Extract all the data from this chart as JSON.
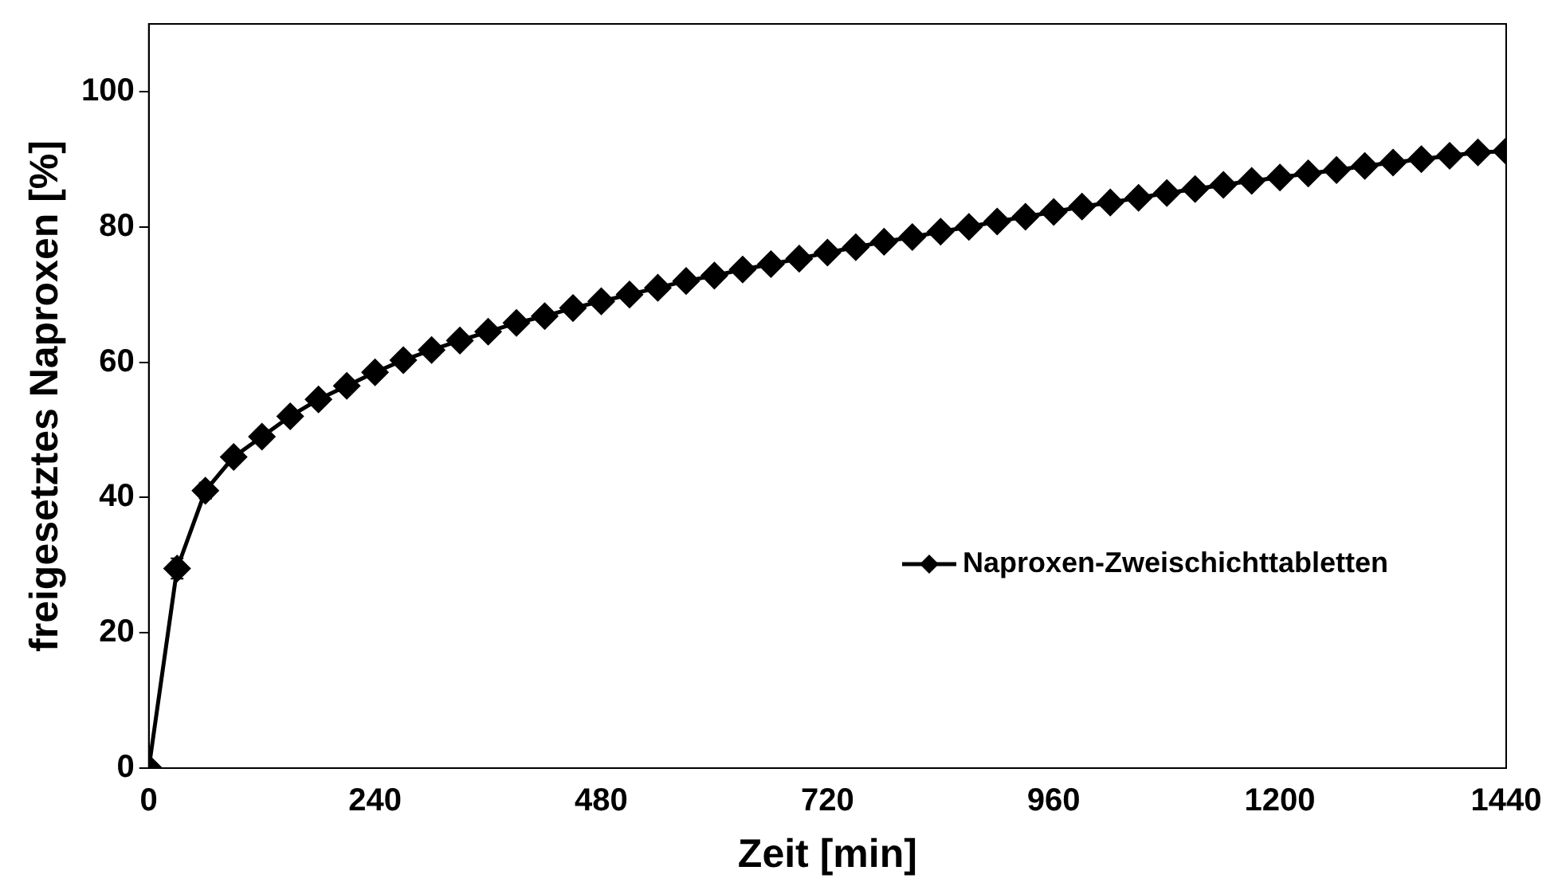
{
  "chart_data": {
    "type": "line",
    "xlabel": "Zeit [min]",
    "ylabel": "freigesetztes Naproxen [%]",
    "x": [
      0,
      30,
      60,
      90,
      120,
      150,
      180,
      210,
      240,
      270,
      300,
      330,
      360,
      390,
      420,
      450,
      480,
      510,
      540,
      570,
      600,
      630,
      660,
      690,
      720,
      750,
      780,
      810,
      840,
      870,
      900,
      930,
      960,
      990,
      1020,
      1050,
      1080,
      1110,
      1140,
      1170,
      1200,
      1230,
      1260,
      1290,
      1320,
      1350,
      1380,
      1410,
      1440
    ],
    "series": [
      {
        "name": "Naproxen-Zweischichttabletten",
        "color": "#000000",
        "values": [
          0,
          29.5,
          41,
          46,
          49,
          52,
          54.5,
          56.5,
          58.5,
          60.3,
          61.8,
          63.2,
          64.5,
          65.8,
          66.8,
          68,
          69,
          70,
          71,
          72,
          72.8,
          73.7,
          74.5,
          75.3,
          76.2,
          77,
          77.8,
          78.5,
          79.3,
          80,
          80.8,
          81.5,
          82.2,
          83,
          83.6,
          84.3,
          85,
          85.6,
          86.2,
          86.8,
          87.3,
          87.9,
          88.4,
          89,
          89.5,
          90,
          90.5,
          91,
          91.2
        ],
        "errors": [
          null,
          1.5,
          1.2,
          1,
          1,
          null,
          null,
          null,
          null,
          null,
          null,
          null,
          null,
          null,
          null,
          null,
          null,
          null,
          null,
          null,
          null,
          null,
          null,
          null,
          null,
          null,
          null,
          null,
          null,
          null,
          null,
          null,
          null,
          null,
          null,
          null,
          null,
          null,
          null,
          null,
          null,
          null,
          null,
          null,
          null,
          null,
          null,
          null,
          null
        ]
      }
    ],
    "xlim": [
      0,
      1440
    ],
    "xticks": [
      0,
      240,
      480,
      720,
      960,
      1200,
      1440
    ],
    "ylim": [
      0,
      110
    ],
    "yticks": [
      0,
      20,
      40,
      60,
      80,
      100
    ],
    "grid": false,
    "legend": "right",
    "marker": "diamond",
    "line_style": "solid"
  }
}
